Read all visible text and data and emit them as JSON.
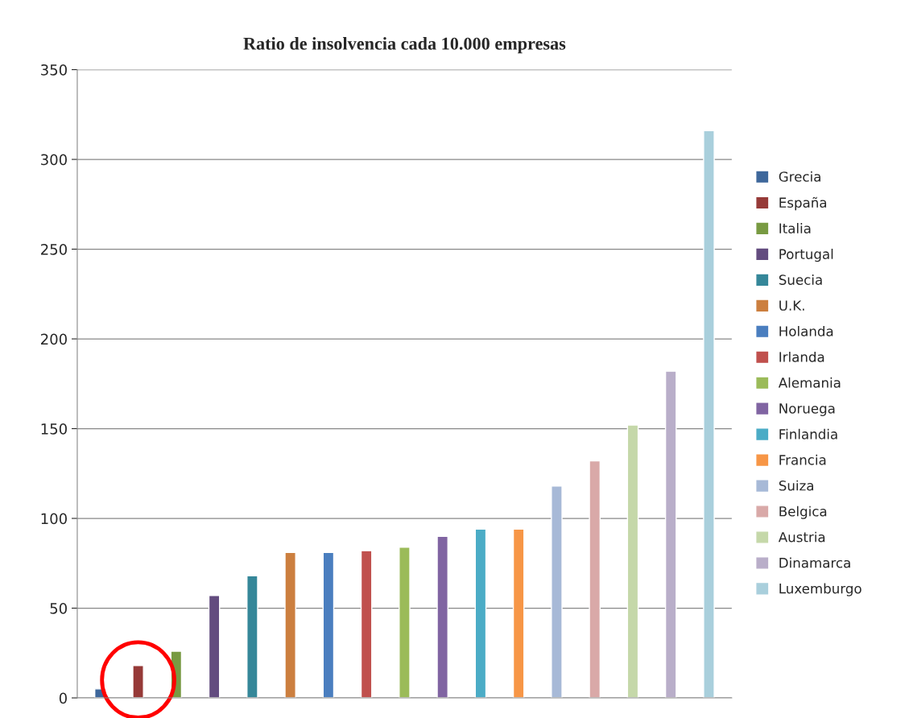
{
  "chart_data": {
    "type": "bar",
    "title": "Ratio de insolvencia cada 10.000 empresas",
    "categories": [
      null,
      null,
      null,
      null,
      null,
      null,
      null,
      null,
      null,
      null,
      null,
      null,
      null,
      null,
      null,
      null,
      null
    ],
    "series": [
      {
        "name": "Grecia",
        "color": "#3e679b",
        "values": [
          5,
          null,
          null,
          null,
          null,
          null,
          null,
          null,
          null,
          null,
          null,
          null,
          null,
          null,
          null,
          null,
          null
        ]
      },
      {
        "name": "España",
        "color": "#963a38",
        "values": [
          null,
          18,
          null,
          null,
          null,
          null,
          null,
          null,
          null,
          null,
          null,
          null,
          null,
          null,
          null,
          null,
          null
        ]
      },
      {
        "name": "Italia",
        "color": "#789a42",
        "values": [
          null,
          null,
          26,
          null,
          null,
          null,
          null,
          null,
          null,
          null,
          null,
          null,
          null,
          null,
          null,
          null,
          null
        ]
      },
      {
        "name": "Portugal",
        "color": "#634c7f",
        "values": [
          null,
          null,
          null,
          57,
          null,
          null,
          null,
          null,
          null,
          null,
          null,
          null,
          null,
          null,
          null,
          null,
          null
        ]
      },
      {
        "name": "Suecia",
        "color": "#358799",
        "values": [
          null,
          null,
          null,
          null,
          68,
          null,
          null,
          null,
          null,
          null,
          null,
          null,
          null,
          null,
          null,
          null,
          null
        ]
      },
      {
        "name": "U.K.",
        "color": "#cc7f3f",
        "values": [
          null,
          null,
          null,
          null,
          null,
          81,
          null,
          null,
          null,
          null,
          null,
          null,
          null,
          null,
          null,
          null,
          null
        ]
      },
      {
        "name": "Holanda",
        "color": "#4a7ebf",
        "values": [
          null,
          null,
          null,
          null,
          null,
          null,
          81,
          null,
          null,
          null,
          null,
          null,
          null,
          null,
          null,
          null,
          null
        ]
      },
      {
        "name": "Irlanda",
        "color": "#c0504d",
        "values": [
          null,
          null,
          null,
          null,
          null,
          null,
          null,
          82,
          null,
          null,
          null,
          null,
          null,
          null,
          null,
          null,
          null
        ]
      },
      {
        "name": "Alemania",
        "color": "#9bbb59",
        "values": [
          null,
          null,
          null,
          null,
          null,
          null,
          null,
          null,
          84,
          null,
          null,
          null,
          null,
          null,
          null,
          null,
          null
        ]
      },
      {
        "name": "Noruega",
        "color": "#8064a2",
        "values": [
          null,
          null,
          null,
          null,
          null,
          null,
          null,
          null,
          null,
          90,
          null,
          null,
          null,
          null,
          null,
          null,
          null
        ]
      },
      {
        "name": "Finlandia",
        "color": "#4bacc6",
        "values": [
          null,
          null,
          null,
          null,
          null,
          null,
          null,
          null,
          null,
          null,
          94,
          null,
          null,
          null,
          null,
          null,
          null
        ]
      },
      {
        "name": "Francia",
        "color": "#f79646",
        "values": [
          null,
          null,
          null,
          null,
          null,
          null,
          null,
          null,
          null,
          null,
          null,
          94,
          null,
          null,
          null,
          null,
          null
        ]
      },
      {
        "name": "Suiza",
        "color": "#a7b9d7",
        "values": [
          null,
          null,
          null,
          null,
          null,
          null,
          null,
          null,
          null,
          null,
          null,
          null,
          118,
          null,
          null,
          null,
          null
        ]
      },
      {
        "name": "Belgica",
        "color": "#d9a9a8",
        "values": [
          null,
          null,
          null,
          null,
          null,
          null,
          null,
          null,
          null,
          null,
          null,
          null,
          null,
          132,
          null,
          null,
          null
        ]
      },
      {
        "name": "Austria",
        "color": "#c5d8a9",
        "values": [
          null,
          null,
          null,
          null,
          null,
          null,
          null,
          null,
          null,
          null,
          null,
          null,
          null,
          null,
          152,
          null,
          null
        ]
      },
      {
        "name": "Dinamarca",
        "color": "#b9aec9",
        "values": [
          null,
          null,
          null,
          null,
          null,
          null,
          null,
          null,
          null,
          null,
          null,
          null,
          null,
          null,
          null,
          182,
          null
        ]
      },
      {
        "name": "Luxemburgo",
        "color": "#a9cfdc",
        "values": [
          null,
          null,
          null,
          null,
          null,
          null,
          null,
          null,
          null,
          null,
          null,
          null,
          null,
          null,
          null,
          null,
          316
        ]
      }
    ],
    "ylim": [
      0,
      350
    ],
    "yticks": [
      0,
      50,
      100,
      150,
      200,
      250,
      300,
      350
    ],
    "grid": "y",
    "legend": "right",
    "tick_labels": "y"
  }
}
